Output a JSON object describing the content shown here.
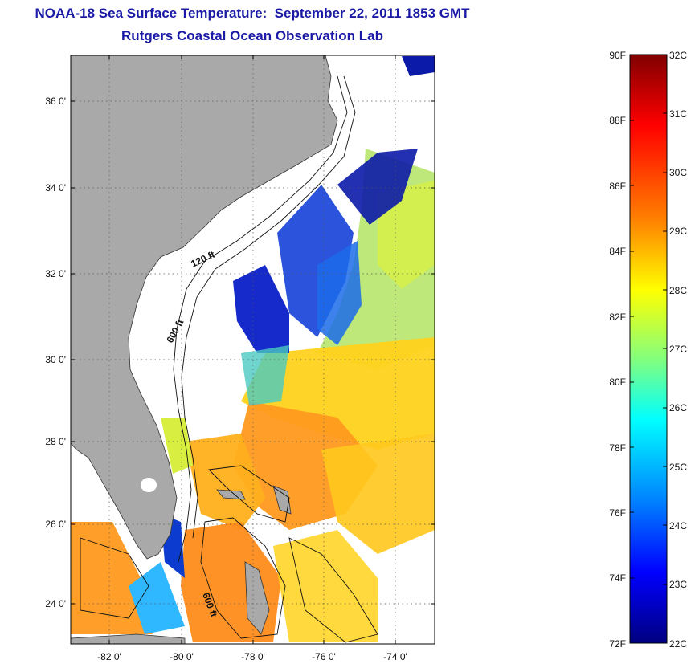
{
  "header": {
    "title": "NOAA-18 Sea Surface Temperature:  September 22, 2011 1853 GMT",
    "subtitle": "Rutgers Coastal Ocean Observation Lab"
  },
  "map": {
    "latitude_ticks": [
      "36 0'",
      "34 0'",
      "32 0'",
      "30 0'",
      "28 0'",
      "26 0'",
      "24 0'"
    ],
    "longitude_ticks": [
      "-82 0'",
      "-80 0'",
      "-78 0'",
      "-76 0'",
      "-74 0'"
    ],
    "contour_labels": [
      "120 ft",
      "600 ft",
      "600 ft"
    ],
    "colors": {
      "land": "#a9a9a9",
      "water_missing": "#ffffff",
      "grid": "#555555"
    }
  },
  "colorbar": {
    "fahrenheit": [
      "90F",
      "88F",
      "86F",
      "84F",
      "82F",
      "80F",
      "78F",
      "76F",
      "74F",
      "72F"
    ],
    "celsius": [
      "32C",
      "31C",
      "30C",
      "29C",
      "28C",
      "27C",
      "26C",
      "25C",
      "24C",
      "23C",
      "22C"
    ],
    "colormap": [
      "#800000",
      "#ff0000",
      "#ff8000",
      "#ffff00",
      "#80ff80",
      "#00ffff",
      "#0080ff",
      "#0000ff",
      "#000080"
    ]
  }
}
